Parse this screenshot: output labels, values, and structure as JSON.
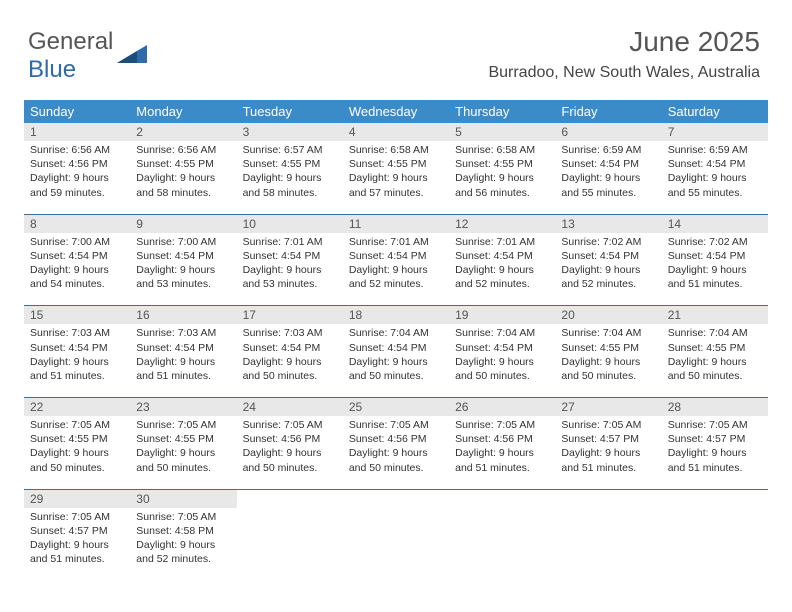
{
  "logo": {
    "word1": "General",
    "word2": "Blue"
  },
  "header": {
    "month_title": "June 2025",
    "location": "Burradoo, New South Wales, Australia"
  },
  "colors": {
    "header_bg": "#3b8bc9",
    "week_border": "#3b6fa0",
    "daynum_bg": "#e8e8e8",
    "text": "#333333",
    "title": "#555555",
    "logo_blue": "#2f6aa9"
  },
  "day_names": [
    "Sunday",
    "Monday",
    "Tuesday",
    "Wednesday",
    "Thursday",
    "Friday",
    "Saturday"
  ],
  "weeks": [
    [
      {
        "num": "1",
        "sunrise": "Sunrise: 6:56 AM",
        "sunset": "Sunset: 4:56 PM",
        "day1": "Daylight: 9 hours",
        "day2": "and 59 minutes."
      },
      {
        "num": "2",
        "sunrise": "Sunrise: 6:56 AM",
        "sunset": "Sunset: 4:55 PM",
        "day1": "Daylight: 9 hours",
        "day2": "and 58 minutes."
      },
      {
        "num": "3",
        "sunrise": "Sunrise: 6:57 AM",
        "sunset": "Sunset: 4:55 PM",
        "day1": "Daylight: 9 hours",
        "day2": "and 58 minutes."
      },
      {
        "num": "4",
        "sunrise": "Sunrise: 6:58 AM",
        "sunset": "Sunset: 4:55 PM",
        "day1": "Daylight: 9 hours",
        "day2": "and 57 minutes."
      },
      {
        "num": "5",
        "sunrise": "Sunrise: 6:58 AM",
        "sunset": "Sunset: 4:55 PM",
        "day1": "Daylight: 9 hours",
        "day2": "and 56 minutes."
      },
      {
        "num": "6",
        "sunrise": "Sunrise: 6:59 AM",
        "sunset": "Sunset: 4:54 PM",
        "day1": "Daylight: 9 hours",
        "day2": "and 55 minutes."
      },
      {
        "num": "7",
        "sunrise": "Sunrise: 6:59 AM",
        "sunset": "Sunset: 4:54 PM",
        "day1": "Daylight: 9 hours",
        "day2": "and 55 minutes."
      }
    ],
    [
      {
        "num": "8",
        "sunrise": "Sunrise: 7:00 AM",
        "sunset": "Sunset: 4:54 PM",
        "day1": "Daylight: 9 hours",
        "day2": "and 54 minutes."
      },
      {
        "num": "9",
        "sunrise": "Sunrise: 7:00 AM",
        "sunset": "Sunset: 4:54 PM",
        "day1": "Daylight: 9 hours",
        "day2": "and 53 minutes."
      },
      {
        "num": "10",
        "sunrise": "Sunrise: 7:01 AM",
        "sunset": "Sunset: 4:54 PM",
        "day1": "Daylight: 9 hours",
        "day2": "and 53 minutes."
      },
      {
        "num": "11",
        "sunrise": "Sunrise: 7:01 AM",
        "sunset": "Sunset: 4:54 PM",
        "day1": "Daylight: 9 hours",
        "day2": "and 52 minutes."
      },
      {
        "num": "12",
        "sunrise": "Sunrise: 7:01 AM",
        "sunset": "Sunset: 4:54 PM",
        "day1": "Daylight: 9 hours",
        "day2": "and 52 minutes."
      },
      {
        "num": "13",
        "sunrise": "Sunrise: 7:02 AM",
        "sunset": "Sunset: 4:54 PM",
        "day1": "Daylight: 9 hours",
        "day2": "and 52 minutes."
      },
      {
        "num": "14",
        "sunrise": "Sunrise: 7:02 AM",
        "sunset": "Sunset: 4:54 PM",
        "day1": "Daylight: 9 hours",
        "day2": "and 51 minutes."
      }
    ],
    [
      {
        "num": "15",
        "sunrise": "Sunrise: 7:03 AM",
        "sunset": "Sunset: 4:54 PM",
        "day1": "Daylight: 9 hours",
        "day2": "and 51 minutes."
      },
      {
        "num": "16",
        "sunrise": "Sunrise: 7:03 AM",
        "sunset": "Sunset: 4:54 PM",
        "day1": "Daylight: 9 hours",
        "day2": "and 51 minutes."
      },
      {
        "num": "17",
        "sunrise": "Sunrise: 7:03 AM",
        "sunset": "Sunset: 4:54 PM",
        "day1": "Daylight: 9 hours",
        "day2": "and 50 minutes."
      },
      {
        "num": "18",
        "sunrise": "Sunrise: 7:04 AM",
        "sunset": "Sunset: 4:54 PM",
        "day1": "Daylight: 9 hours",
        "day2": "and 50 minutes."
      },
      {
        "num": "19",
        "sunrise": "Sunrise: 7:04 AM",
        "sunset": "Sunset: 4:54 PM",
        "day1": "Daylight: 9 hours",
        "day2": "and 50 minutes."
      },
      {
        "num": "20",
        "sunrise": "Sunrise: 7:04 AM",
        "sunset": "Sunset: 4:55 PM",
        "day1": "Daylight: 9 hours",
        "day2": "and 50 minutes."
      },
      {
        "num": "21",
        "sunrise": "Sunrise: 7:04 AM",
        "sunset": "Sunset: 4:55 PM",
        "day1": "Daylight: 9 hours",
        "day2": "and 50 minutes."
      }
    ],
    [
      {
        "num": "22",
        "sunrise": "Sunrise: 7:05 AM",
        "sunset": "Sunset: 4:55 PM",
        "day1": "Daylight: 9 hours",
        "day2": "and 50 minutes."
      },
      {
        "num": "23",
        "sunrise": "Sunrise: 7:05 AM",
        "sunset": "Sunset: 4:55 PM",
        "day1": "Daylight: 9 hours",
        "day2": "and 50 minutes."
      },
      {
        "num": "24",
        "sunrise": "Sunrise: 7:05 AM",
        "sunset": "Sunset: 4:56 PM",
        "day1": "Daylight: 9 hours",
        "day2": "and 50 minutes."
      },
      {
        "num": "25",
        "sunrise": "Sunrise: 7:05 AM",
        "sunset": "Sunset: 4:56 PM",
        "day1": "Daylight: 9 hours",
        "day2": "and 50 minutes."
      },
      {
        "num": "26",
        "sunrise": "Sunrise: 7:05 AM",
        "sunset": "Sunset: 4:56 PM",
        "day1": "Daylight: 9 hours",
        "day2": "and 51 minutes."
      },
      {
        "num": "27",
        "sunrise": "Sunrise: 7:05 AM",
        "sunset": "Sunset: 4:57 PM",
        "day1": "Daylight: 9 hours",
        "day2": "and 51 minutes."
      },
      {
        "num": "28",
        "sunrise": "Sunrise: 7:05 AM",
        "sunset": "Sunset: 4:57 PM",
        "day1": "Daylight: 9 hours",
        "day2": "and 51 minutes."
      }
    ],
    [
      {
        "num": "29",
        "sunrise": "Sunrise: 7:05 AM",
        "sunset": "Sunset: 4:57 PM",
        "day1": "Daylight: 9 hours",
        "day2": "and 51 minutes."
      },
      {
        "num": "30",
        "sunrise": "Sunrise: 7:05 AM",
        "sunset": "Sunset: 4:58 PM",
        "day1": "Daylight: 9 hours",
        "day2": "and 52 minutes."
      },
      {
        "empty": true
      },
      {
        "empty": true
      },
      {
        "empty": true
      },
      {
        "empty": true
      },
      {
        "empty": true
      }
    ]
  ]
}
